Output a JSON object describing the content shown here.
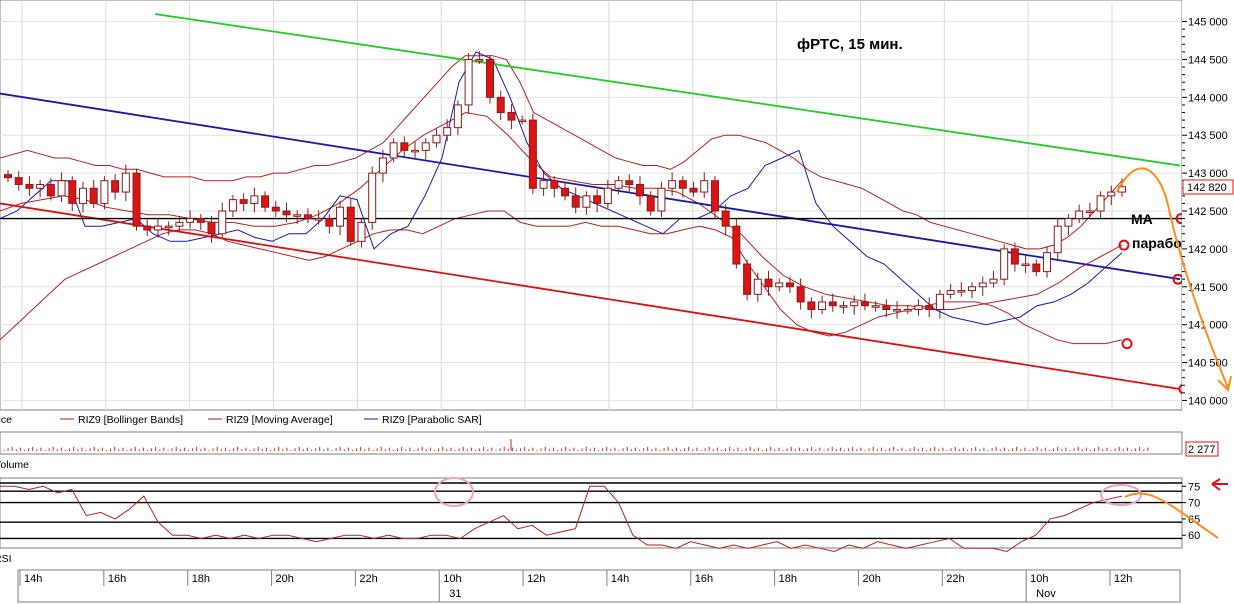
{
  "chart_data": {
    "type": "candlestick",
    "title": "фРТС,  15 мин.",
    "annotations": [
      "MA",
      "параболик"
    ],
    "price_axis": {
      "ticks": [
        "145 000",
        "144 500",
        "144 000",
        "143 500",
        "143 000",
        "142 500",
        "142 000",
        "141 500",
        "141 000",
        "140 500",
        "140 000"
      ],
      "last_price": "142 820",
      "ylim": [
        139900,
        145100
      ]
    },
    "volume_axis": {
      "value": "2 277"
    },
    "rsi_axis": {
      "ticks": [
        "75",
        "70",
        "65",
        "60"
      ]
    },
    "legend": [
      {
        "label": "Price",
        "color": "#000000"
      },
      {
        "label": "RIZ9 [Bollinger Bands]",
        "color": "#b22222"
      },
      {
        "label": "RIZ9 [Moving Average]",
        "color": "#b22222"
      },
      {
        "label": "RIZ9 [Parabolic SAR]",
        "color": "#1a1aa6"
      }
    ],
    "panels": [
      "Volume",
      "RSI"
    ],
    "time_labels": [
      "14h",
      "16h",
      "18h",
      "20h",
      "22h",
      "10h",
      "12h",
      "14h",
      "16h",
      "18h",
      "20h",
      "22h",
      "10h",
      "12h"
    ],
    "date_labels": [
      "31",
      "Nov"
    ],
    "colors": {
      "up": "#ffffff",
      "down": "#dc1414",
      "candle_outline": "#8b1a1a",
      "bollinger": "#b22222",
      "sar": "#1a1aa6",
      "channel_top": "#22cc22",
      "channel_mid": "#1a1aa6",
      "channel_low": "#dd1010",
      "support": "#000000",
      "forecast": "#ff8c1a",
      "marker": "#dd1010"
    },
    "series": [
      {
        "name": "close",
        "values": [
          142940,
          142850,
          142800,
          142850,
          142700,
          142900,
          142600,
          142800,
          142600,
          142900,
          142750,
          143000,
          142300,
          142250,
          142300,
          142300,
          142350,
          142400,
          142350,
          142200,
          142500,
          142650,
          142600,
          142700,
          142550,
          142500,
          142450,
          142450,
          142400,
          142400,
          142300,
          142550,
          142100,
          142350,
          143000,
          143200,
          143400,
          143300,
          143300,
          143400,
          143500,
          143600,
          143900,
          144500,
          144500,
          144000,
          143800,
          143700,
          143700,
          142800,
          142900,
          142800,
          142700,
          142550,
          142700,
          142600,
          142800,
          142900,
          142850,
          142700,
          142500,
          142800,
          142900,
          142800,
          142750,
          142900,
          142500,
          142300,
          141800,
          141400,
          141600,
          141500,
          141550,
          141500,
          141300,
          141200,
          141300,
          141250,
          141250,
          141300,
          141250,
          141250,
          141200,
          141200,
          141200,
          141250,
          141200,
          141400,
          141450,
          141450,
          141500,
          141550,
          141600,
          142000,
          141800,
          141800,
          141700,
          141950,
          142300,
          142400,
          142500,
          142500,
          142700,
          142750,
          142820
        ]
      },
      {
        "name": "RIZ9 [Bollinger Bands] upper",
        "values": [
          143200,
          143250,
          143300,
          143250,
          143200,
          143200,
          143150,
          143100,
          143100,
          143050,
          143050,
          143000,
          142950,
          142950,
          142950,
          142900,
          142900,
          142900,
          142950,
          142950,
          143000,
          143000,
          143050,
          143100,
          143100,
          143150,
          143200,
          143300,
          143400,
          143600,
          143800,
          144000,
          144200,
          144400,
          144550,
          144550,
          144550,
          144500,
          144200,
          143800,
          143700,
          143600,
          143500,
          143400,
          143300,
          143200,
          143150,
          143100,
          143100,
          143050,
          143150,
          143300,
          143450,
          143500,
          143500,
          143450,
          143400,
          143300,
          143200,
          143050,
          142950,
          142900,
          142850,
          142800,
          142700,
          142600,
          142500,
          142450,
          142350,
          142300,
          142250,
          142200,
          142150,
          142100,
          142050,
          142000,
          142000,
          142050,
          142150,
          142300,
          142500,
          142700,
          142900
        ]
      },
      {
        "name": "RIZ9 [Bollinger Bands] lower",
        "values": [
          140800,
          141000,
          141200,
          141400,
          141600,
          141700,
          141800,
          141900,
          142000,
          142100,
          142200,
          142250,
          142250,
          142200,
          142100,
          142050,
          142000,
          141950,
          141900,
          141850,
          141900,
          142000,
          142100,
          142200,
          142250,
          142250,
          142200,
          142300,
          142400,
          142450,
          142500,
          142500,
          142350,
          142300,
          142300,
          142300,
          142350,
          142300,
          142300,
          142250,
          142200,
          142200,
          142250,
          142300,
          142250,
          142150,
          141800,
          141500,
          141200,
          141000,
          140900,
          140850,
          140900,
          141000,
          141100,
          141150,
          141200,
          141250,
          141300,
          141300,
          141300,
          141250,
          141150,
          141000,
          140900,
          140800,
          140750,
          140750,
          140750,
          140800
        ]
      },
      {
        "name": "RIZ9 [Moving Average]",
        "values": [
          142500,
          142600,
          142650,
          142700,
          142650,
          142550,
          142500,
          142450,
          142450,
          142400,
          142350,
          142350,
          142300,
          142300,
          142350,
          142450,
          142600,
          142800,
          143050,
          143300,
          143500,
          143650,
          143800,
          143750,
          143500,
          143200,
          142950,
          142900,
          142850,
          142850,
          142800,
          142800,
          142750,
          142600,
          142400,
          142200,
          141900,
          141650,
          141500,
          141400,
          141350,
          141300,
          141250,
          141250,
          141200,
          141200,
          141250,
          141300,
          141350,
          141400,
          141550,
          141750,
          141900,
          142050
        ]
      },
      {
        "name": "RIZ9 [Parabolic SAR]",
        "values": [
          142400,
          142500,
          142700,
          142900,
          142900,
          142300,
          142300,
          142350,
          142400,
          142200,
          142100,
          142100,
          142150,
          142200,
          142250,
          142150,
          142100,
          142200,
          142200,
          142400,
          142700,
          142650,
          142000,
          142200,
          142300,
          142700,
          143200,
          144200,
          144600,
          144500,
          144000,
          143400,
          143000,
          142800,
          142700,
          142600,
          142500,
          142400,
          142300,
          142200,
          142400,
          142400,
          142500,
          142700,
          142800,
          143100,
          143200,
          143300,
          142600,
          142300,
          142100,
          141900,
          141800,
          141600,
          141400,
          141200,
          141100,
          141050,
          141000,
          141050,
          141100,
          141250,
          141300,
          141400,
          141550,
          141750,
          141950
        ]
      },
      {
        "name": "RSI",
        "values": [
          75,
          75,
          74,
          75,
          73,
          74,
          66,
          67,
          65,
          68,
          72,
          64,
          60,
          60,
          59,
          60,
          59,
          60,
          59,
          60,
          60,
          59,
          58,
          59,
          60,
          60,
          59,
          60,
          59,
          59,
          60,
          60,
          59,
          62,
          64,
          66,
          62,
          63,
          60,
          61,
          62,
          75,
          75,
          70,
          60,
          57,
          57,
          56,
          58,
          57,
          56,
          57,
          56,
          57,
          58,
          56,
          57,
          56,
          55,
          57,
          56,
          58,
          57,
          56,
          57,
          58,
          59,
          56,
          56,
          56,
          55,
          58,
          60,
          65,
          66,
          68,
          70,
          71,
          72
        ]
      }
    ]
  }
}
